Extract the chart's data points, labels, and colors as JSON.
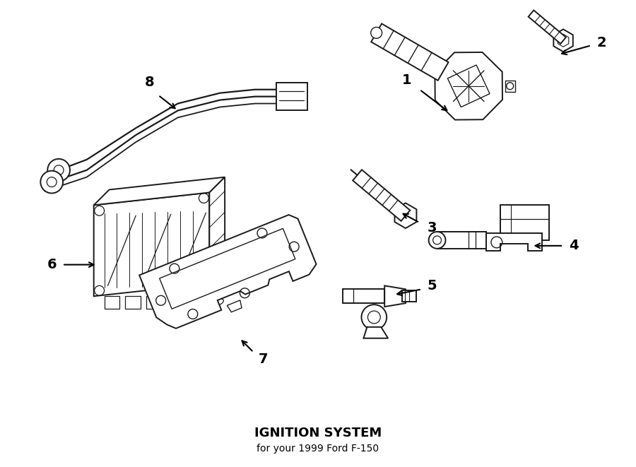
{
  "title": "IGNITION SYSTEM",
  "subtitle": "for your 1999 Ford F-150",
  "bg_color": "#ffffff",
  "line_color": "#1a1a1a",
  "text_color": "#000000",
  "fig_width": 9.0,
  "fig_height": 6.61,
  "dpi": 100
}
